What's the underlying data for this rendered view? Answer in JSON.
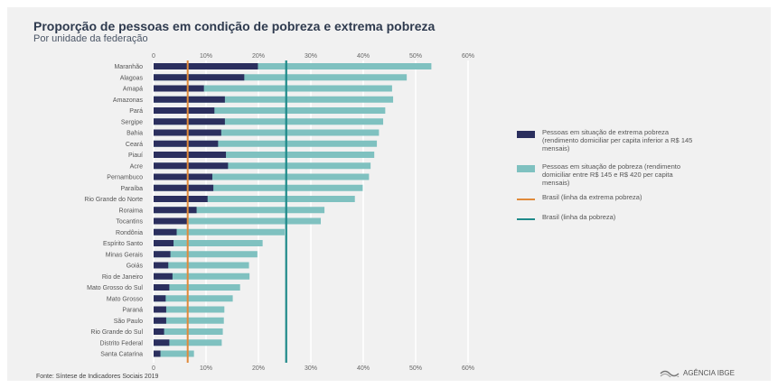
{
  "title": "Proporção de pessoas em condição de pobreza e extrema pobreza",
  "subtitle": "Por unidade da federação",
  "source": "Fonte: Síntese de Indicadores Sociais 2019",
  "logo_text": "AGÊNCIA IBGE",
  "colors": {
    "extreme": "#2b2f5e",
    "poverty": "#7fc1c0",
    "extreme_line": "#e08a3a",
    "poverty_line": "#1f8a8a",
    "grid": "#ffffff"
  },
  "chart_data": {
    "type": "bar",
    "orientation": "horizontal",
    "stacked": false,
    "xlim": [
      0,
      60
    ],
    "xticks": [
      "0",
      "10%",
      "20%",
      "30%",
      "40%",
      "50%",
      "60%"
    ],
    "categories": [
      "Maranhão",
      "Alagoas",
      "Amapá",
      "Amazonas",
      "Pará",
      "Sergipe",
      "Bahia",
      "Ceará",
      "Piauí",
      "Acre",
      "Pernambuco",
      "Paraíba",
      "Rio Grande do Norte",
      "Roraima",
      "Tocantins",
      "Rondônia",
      "Espírito Santo",
      "Minas Gerais",
      "Goiás",
      "Rio de Janeiro",
      "Mato Grosso do Sul",
      "Mato Grosso",
      "Paraná",
      "São Paulo",
      "Rio Grande do Sul",
      "Distrito Federal",
      "Santa Catarina"
    ],
    "series": [
      {
        "name": "Pessoas em situação de extrema pobreza (rendimento domiciliar per capita inferior a R$ 145 mensais)",
        "values": [
          19.9,
          17.3,
          9.6,
          13.6,
          11.6,
          13.6,
          12.9,
          12.3,
          13.8,
          14.2,
          11.2,
          11.4,
          10.3,
          8.2,
          6.4,
          4.4,
          3.8,
          3.2,
          2.8,
          3.6,
          3.0,
          2.3,
          2.4,
          2.4,
          2.0,
          3.0,
          1.3
        ]
      },
      {
        "name": "Pessoas em situação de pobreza (rendimento domiciliar entre R$ 145 e R$ 420 per capita mensais)",
        "values": [
          53.0,
          48.3,
          45.5,
          45.7,
          44.2,
          43.8,
          43.0,
          42.6,
          42.1,
          41.4,
          41.1,
          39.9,
          38.4,
          32.6,
          31.9,
          25.0,
          20.8,
          19.8,
          18.2,
          18.3,
          16.5,
          15.1,
          13.5,
          13.4,
          13.2,
          13.0,
          7.7
        ]
      }
    ],
    "reference_lines": [
      {
        "name": "Brasil (linha da extrema pobreza)",
        "value": 6.5
      },
      {
        "name": "Brasil (linha da pobreza)",
        "value": 25.3
      }
    ],
    "legend_position": "right",
    "grid": true
  }
}
